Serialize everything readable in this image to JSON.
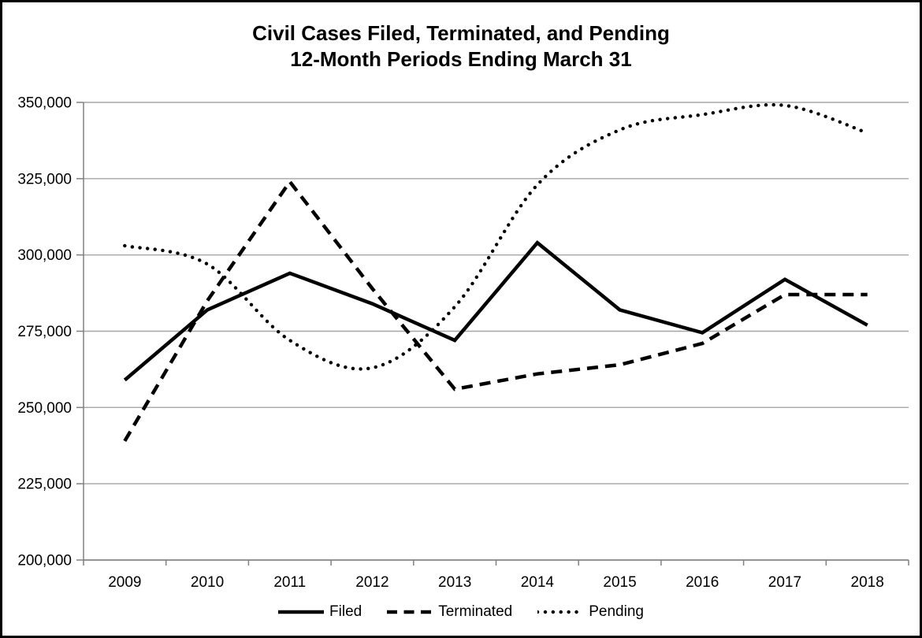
{
  "chart_data": {
    "type": "line",
    "title_line1": "Civil Cases Filed, Terminated, and Pending",
    "title_line2": "12-Month Periods Ending March 31",
    "categories": [
      "2009",
      "2010",
      "2011",
      "2012",
      "2013",
      "2014",
      "2015",
      "2016",
      "2017",
      "2018"
    ],
    "series": [
      {
        "name": "Filed",
        "style": "solid",
        "smooth": false,
        "values": [
          259000,
          282000,
          294000,
          284000,
          272000,
          304000,
          282000,
          274500,
          292000,
          277000
        ]
      },
      {
        "name": "Terminated",
        "style": "dashed",
        "smooth": false,
        "values": [
          239000,
          285000,
          324000,
          289000,
          256000,
          261000,
          264000,
          271000,
          287000,
          287000
        ]
      },
      {
        "name": "Pending",
        "style": "dotted",
        "smooth": true,
        "values": [
          303000,
          297000,
          272000,
          263000,
          283000,
          323000,
          341000,
          346000,
          349000,
          340000
        ]
      }
    ],
    "ylim": [
      200000,
      350000
    ],
    "ytick_step": 25000,
    "grid": true,
    "legend_position": "bottom",
    "colors": {
      "line": "#000000",
      "gridline": "#a6a6a6",
      "axis": "#808080",
      "text": "#000000",
      "background": "#ffffff",
      "frame_border": "#000000"
    }
  }
}
